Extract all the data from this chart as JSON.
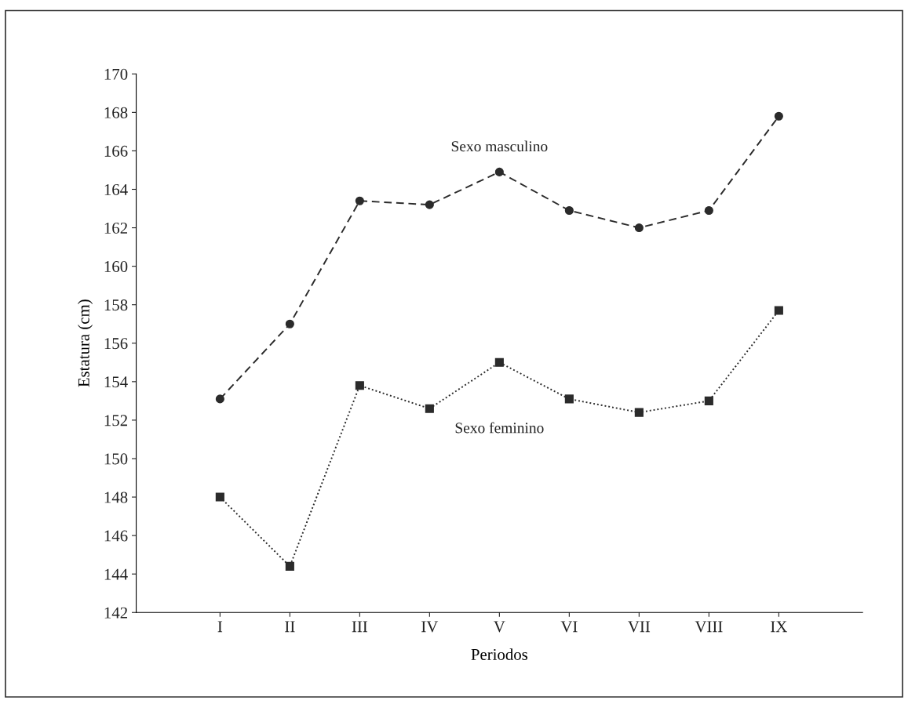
{
  "chart_data": {
    "type": "line",
    "xlabel": "Periodos",
    "ylabel": "Estatura (cm)",
    "categories": [
      "I",
      "II",
      "III",
      "IV",
      "V",
      "VI",
      "VII",
      "VIII",
      "IX"
    ],
    "ylim": [
      142,
      170
    ],
    "yticks": [
      142,
      144,
      146,
      148,
      150,
      152,
      154,
      156,
      158,
      160,
      162,
      164,
      166,
      168,
      170
    ],
    "grid": false,
    "legend": false,
    "series": [
      {
        "name": "Sexo masculino",
        "color": "#2b2b2b",
        "marker": "circle",
        "line_style": "dashed",
        "values": [
          153.1,
          157.0,
          163.4,
          163.2,
          164.9,
          162.9,
          162.0,
          162.9,
          167.8
        ]
      },
      {
        "name": "Sexo feminino",
        "color": "#2b2b2b",
        "marker": "square",
        "line_style": "dotted",
        "values": [
          148.0,
          144.4,
          153.8,
          152.6,
          155.0,
          153.1,
          152.4,
          153.0,
          157.7
        ]
      }
    ]
  }
}
